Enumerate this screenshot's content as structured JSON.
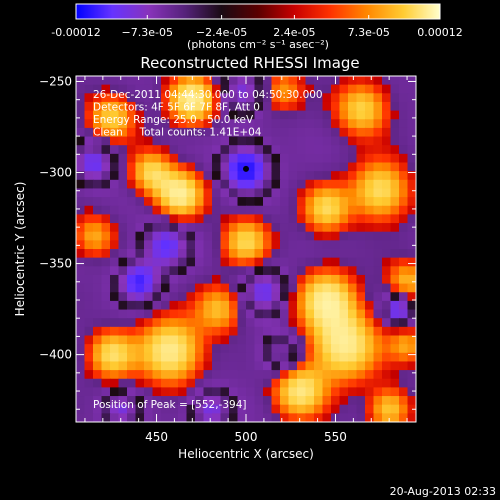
{
  "chart_data": {
    "type": "heatmap",
    "title": "Reconstructed RHESSI Image",
    "xlabel": "Heliocentric X (arcsec)",
    "ylabel": "Heliocentric Y (arcsec)",
    "xlim": [
      405,
      595
    ],
    "ylim": [
      -437,
      -247
    ],
    "x_ticks": [
      450,
      500,
      550
    ],
    "y_ticks": [
      -250,
      -300,
      -350,
      -400
    ],
    "colorbar": {
      "unit_label": "(photons cm⁻² s⁻¹ asec⁻²)",
      "range": [
        -0.00012,
        0.00012
      ],
      "tick_values": [
        -0.00012,
        -7.3e-05,
        -2.4e-05,
        2.4e-05,
        7.3e-05,
        0.00012
      ],
      "tick_labels": [
        "-0.00012",
        "−7.3e-05",
        "−2.4e-05",
        "2.4e-05",
        "7.3e-05",
        "0.00012"
      ],
      "colormap": [
        "#0000ff",
        "#6633ff",
        "#8833bb",
        "#55227a",
        "#1a0a14",
        "#5a0000",
        "#c80000",
        "#ff3300",
        "#ff8800",
        "#ffcc33",
        "#ffffcc"
      ]
    },
    "annotations": [
      "26-Dec-2011 04:44:30.000 to 04:50:30.000",
      "Detectors: 4F 5F 6F 7F 8F, Att 0",
      "Energy Range: 25.0 - 50.0 keV",
      "Clean     Total counts: 1.41E+04"
    ],
    "peak_label": "Position of Peak = [552,-394]",
    "peak": [
      552,
      -394
    ],
    "sources": [
      {
        "x": 470,
        "y": -260,
        "v": 1.0,
        "s": 9
      },
      {
        "x": 463,
        "y": -312,
        "v": 1.0,
        "s": 9
      },
      {
        "x": 447,
        "y": -300,
        "v": 0.75,
        "s": 8
      },
      {
        "x": 425,
        "y": -270,
        "v": 0.7,
        "s": 9
      },
      {
        "x": 565,
        "y": -265,
        "v": 0.75,
        "s": 10
      },
      {
        "x": 575,
        "y": -310,
        "v": 0.85,
        "s": 11
      },
      {
        "x": 545,
        "y": -320,
        "v": 0.75,
        "s": 9
      },
      {
        "x": 520,
        "y": -255,
        "v": 0.5,
        "s": 8
      },
      {
        "x": 590,
        "y": -360,
        "v": 0.6,
        "s": 8
      },
      {
        "x": 500,
        "y": -338,
        "v": 0.75,
        "s": 9
      },
      {
        "x": 545,
        "y": -370,
        "v": 0.95,
        "s": 11
      },
      {
        "x": 555,
        "y": -395,
        "v": 1.0,
        "s": 13
      },
      {
        "x": 530,
        "y": -420,
        "v": 0.9,
        "s": 10
      },
      {
        "x": 458,
        "y": -398,
        "v": 1.0,
        "s": 12
      },
      {
        "x": 425,
        "y": -400,
        "v": 0.8,
        "s": 9
      },
      {
        "x": 415,
        "y": -335,
        "v": 0.55,
        "s": 8
      },
      {
        "x": 485,
        "y": -375,
        "v": 0.6,
        "s": 9
      },
      {
        "x": 580,
        "y": -430,
        "v": 0.7,
        "s": 8
      },
      {
        "x": 590,
        "y": -395,
        "v": 0.5,
        "s": 7
      },
      {
        "x": 500,
        "y": -298,
        "v": -1.0,
        "s": 9
      },
      {
        "x": 440,
        "y": -360,
        "v": -0.8,
        "s": 8
      },
      {
        "x": 455,
        "y": -340,
        "v": -0.7,
        "s": 9
      },
      {
        "x": 585,
        "y": -375,
        "v": -0.75,
        "s": 6
      },
      {
        "x": 415,
        "y": -295,
        "v": -0.65,
        "s": 8
      },
      {
        "x": 510,
        "y": -365,
        "v": -0.6,
        "s": 9
      },
      {
        "x": 520,
        "y": -400,
        "v": -0.5,
        "s": 8
      },
      {
        "x": 498,
        "y": -255,
        "v": -0.5,
        "s": 9
      },
      {
        "x": 480,
        "y": -430,
        "v": -0.6,
        "s": 8
      },
      {
        "x": 430,
        "y": -430,
        "v": -0.5,
        "s": 7
      }
    ]
  },
  "footer": {
    "date": "20-Aug-2013 02:33"
  }
}
